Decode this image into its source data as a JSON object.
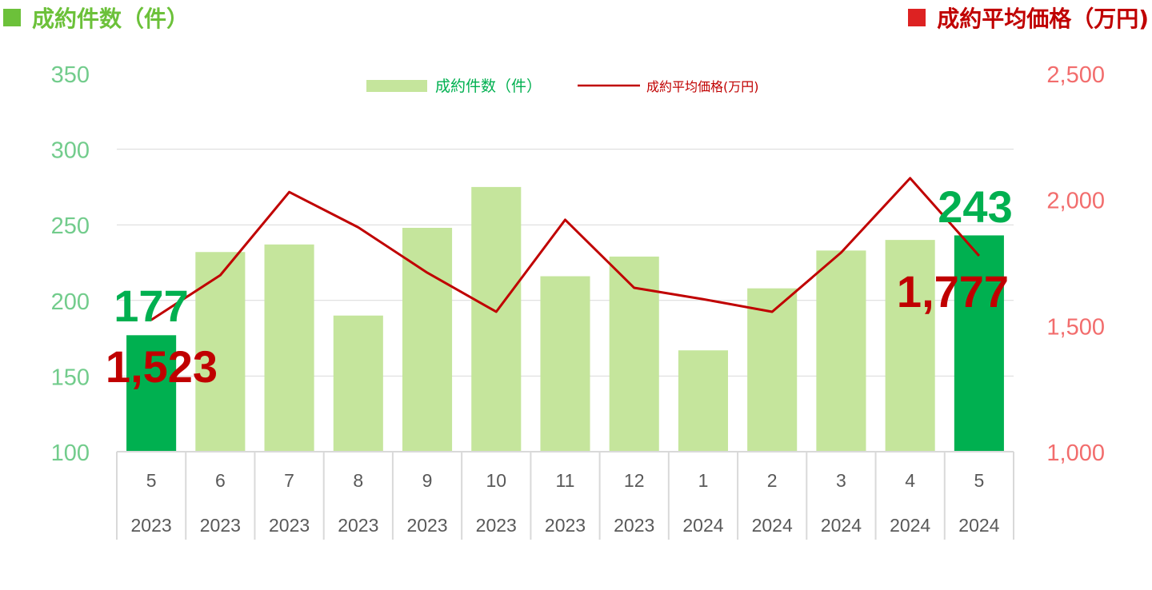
{
  "titles": {
    "left": "成約件数（件）",
    "right": "成約平均価格（万円)"
  },
  "colors": {
    "bar": "#c5e59c",
    "bar_highlight": "#00b050",
    "line": "#c00000",
    "left_axis": "#72cc8c",
    "right_axis": "#f26d6d",
    "grid": "#d9d9d9"
  },
  "chart_data": {
    "type": "bar+line",
    "categories": [
      {
        "month": "5",
        "year": "2023"
      },
      {
        "month": "6",
        "year": "2023"
      },
      {
        "month": "7",
        "year": "2023"
      },
      {
        "month": "8",
        "year": "2023"
      },
      {
        "month": "9",
        "year": "2023"
      },
      {
        "month": "10",
        "year": "2023"
      },
      {
        "month": "11",
        "year": "2023"
      },
      {
        "month": "12",
        "year": "2023"
      },
      {
        "month": "1",
        "year": "2024"
      },
      {
        "month": "2",
        "year": "2024"
      },
      {
        "month": "3",
        "year": "2024"
      },
      {
        "month": "4",
        "year": "2024"
      },
      {
        "month": "5",
        "year": "2024"
      }
    ],
    "series": [
      {
        "name": "成約件数（件）",
        "type": "bar",
        "axis": "left",
        "values": [
          177,
          232,
          237,
          190,
          248,
          275,
          216,
          229,
          167,
          208,
          233,
          240,
          243
        ],
        "highlight": [
          0,
          12
        ]
      },
      {
        "name": "成約平均価格(万円)",
        "type": "line",
        "axis": "right",
        "values": [
          1523,
          1700,
          2030,
          1890,
          1710,
          1555,
          1920,
          1650,
          1605,
          1555,
          1790,
          2085,
          1777
        ]
      }
    ],
    "y_left": {
      "min": 100,
      "max": 350,
      "ticks": [
        "100",
        "150",
        "200",
        "250",
        "300",
        "350"
      ]
    },
    "y_right": {
      "min": 1000,
      "max": 2500,
      "ticks": [
        "1,000",
        "1,500",
        "2,000",
        "2,500"
      ]
    },
    "grid": true,
    "legend_position": "top-center",
    "annotations": {
      "first_bar": "177",
      "first_price": "1,523",
      "last_bar": "243",
      "last_price": "1,777"
    }
  }
}
